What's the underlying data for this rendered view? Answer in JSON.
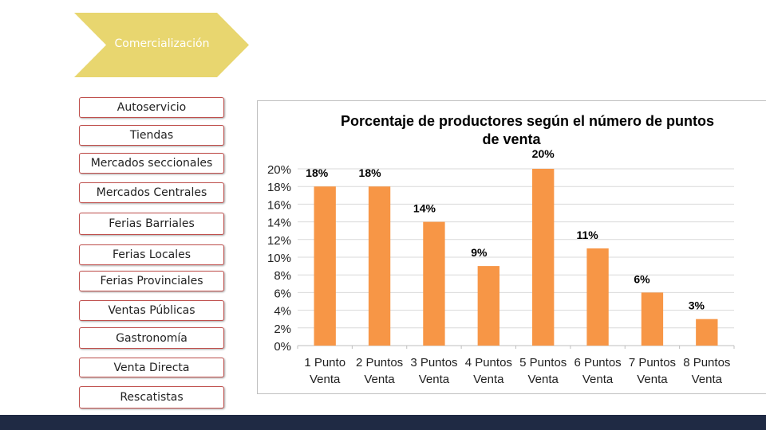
{
  "slide": {
    "header": "Comercialización",
    "channels": [
      "Autoservicio",
      "Tiendas",
      "Mercados seccionales",
      "Mercados Centrales",
      "Ferias Barriales",
      "Ferias Locales",
      "Ferias Provinciales",
      "Ventas Públicas",
      "Gastronomía",
      "Venta Directa",
      "Rescatistas"
    ]
  },
  "colors": {
    "chevron": "#e8d66f",
    "bar": "#f79646",
    "channel_border": "#c0504d",
    "bottom_bar": "#1f2a44",
    "gridline": "#d9d9d9"
  },
  "chart_data": {
    "type": "bar",
    "title": "Porcentaje de productores según el número de puntos de venta",
    "categories": [
      "1 Punto Venta",
      "2 Puntos Venta",
      "3 Puntos Venta",
      "4 Puntos Venta",
      "5 Puntos Venta",
      "6 Puntos Venta",
      "7 Puntos Venta",
      "8 Puntos Venta"
    ],
    "values": [
      18,
      18,
      14,
      9,
      20,
      11,
      6,
      3
    ],
    "value_labels": [
      "18%",
      "18%",
      "14%",
      "9%",
      "20%",
      "11%",
      "6%",
      "3%"
    ],
    "y_ticks": [
      "0%",
      "2%",
      "4%",
      "6%",
      "8%",
      "10%",
      "12%",
      "14%",
      "16%",
      "18%",
      "20%"
    ],
    "ylim": [
      0,
      20
    ],
    "ystep": 2,
    "xlabel": "",
    "ylabel": "",
    "grid": true,
    "legend": "none"
  }
}
